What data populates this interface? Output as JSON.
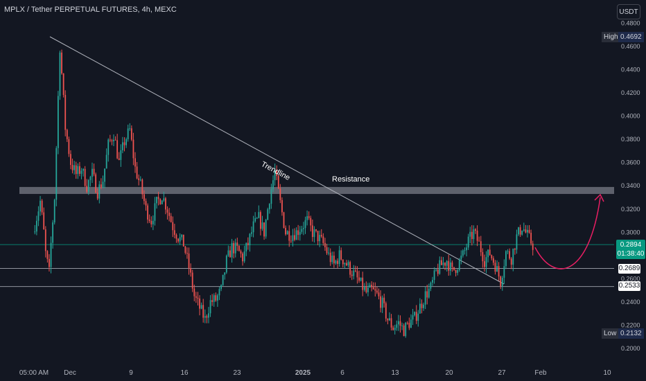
{
  "header": {
    "title": "MPLX / Tether PERPETUAL FUTURES, 4h, MEXC",
    "currency": "USDT"
  },
  "price_scale": {
    "ticks": [
      "0.4800",
      "0.4600",
      "0.4400",
      "0.4200",
      "0.4000",
      "0.3800",
      "0.3600",
      "0.3400",
      "0.3200",
      "0.3000",
      "0.2600",
      "0.2400",
      "0.2200",
      "0.2000"
    ],
    "high_label": "High",
    "high_value": "0.4692",
    "low_label": "Low",
    "low_value": "0.2132",
    "current_price": "0.2894",
    "countdown": "01:38:40",
    "level_1": "0.2689",
    "level_2": "0.2533"
  },
  "time_axis": {
    "ticks": [
      "05:00 AM",
      "Dec",
      "9",
      "16",
      "23",
      "2025",
      "6",
      "13",
      "20",
      "27",
      "Feb",
      "10"
    ]
  },
  "annotations": {
    "trendline_label": "Trendline",
    "resistance_label": "Resistance"
  },
  "colors": {
    "background": "#131722",
    "up": "#26a69a",
    "down": "#ef5350",
    "resistance_zone": "#787b86",
    "projection": "#e91e63",
    "price_line": "#089981"
  },
  "chart_data": {
    "type": "candlestick",
    "title": "MPLX / Tether PERPETUAL FUTURES, 4h, MEXC",
    "ylim": [
      0.195,
      0.482
    ],
    "resistance_zone": [
      0.333,
      0.339
    ],
    "horizontal_levels": [
      0.2894,
      0.2689,
      0.2533
    ],
    "trendline": {
      "from": [
        0.469,
        "late Nov"
      ],
      "to": [
        0.255,
        "late Jan"
      ]
    },
    "price_path": [
      [
        0.3,
        0.32
      ],
      [
        0.34,
        0.3
      ],
      [
        0.29,
        0.265
      ],
      [
        0.27,
        0.33
      ],
      [
        0.33,
        0.46
      ],
      [
        0.46,
        0.39
      ],
      [
        0.39,
        0.36
      ],
      [
        0.36,
        0.35
      ],
      [
        0.35,
        0.355
      ],
      [
        0.355,
        0.34
      ],
      [
        0.34,
        0.35
      ],
      [
        0.35,
        0.335
      ],
      [
        0.335,
        0.345
      ],
      [
        0.345,
        0.375
      ],
      [
        0.375,
        0.385
      ],
      [
        0.385,
        0.36
      ],
      [
        0.36,
        0.378
      ],
      [
        0.378,
        0.388
      ],
      [
        0.388,
        0.355
      ],
      [
        0.355,
        0.34
      ],
      [
        0.34,
        0.32
      ],
      [
        0.32,
        0.31
      ],
      [
        0.31,
        0.325
      ],
      [
        0.325,
        0.332
      ],
      [
        0.332,
        0.32
      ],
      [
        0.32,
        0.305
      ],
      [
        0.305,
        0.296
      ],
      [
        0.296,
        0.29
      ],
      [
        0.29,
        0.27
      ],
      [
        0.27,
        0.245
      ],
      [
        0.245,
        0.235
      ],
      [
        0.235,
        0.225
      ],
      [
        0.225,
        0.24
      ],
      [
        0.24,
        0.242
      ],
      [
        0.242,
        0.25
      ],
      [
        0.25,
        0.275
      ],
      [
        0.275,
        0.287
      ],
      [
        0.287,
        0.285
      ],
      [
        0.285,
        0.278
      ],
      [
        0.278,
        0.29
      ],
      [
        0.29,
        0.305
      ],
      [
        0.305,
        0.312
      ],
      [
        0.312,
        0.3
      ],
      [
        0.3,
        0.33
      ],
      [
        0.33,
        0.352
      ],
      [
        0.352,
        0.325
      ],
      [
        0.325,
        0.3
      ],
      [
        0.3,
        0.298
      ],
      [
        0.298,
        0.3
      ],
      [
        0.3,
        0.305
      ],
      [
        0.305,
        0.31
      ],
      [
        0.31,
        0.3
      ],
      [
        0.3,
        0.296
      ],
      [
        0.296,
        0.29
      ],
      [
        0.29,
        0.28
      ],
      [
        0.28,
        0.272
      ],
      [
        0.272,
        0.28
      ],
      [
        0.28,
        0.275
      ],
      [
        0.275,
        0.268
      ],
      [
        0.268,
        0.262
      ],
      [
        0.262,
        0.255
      ],
      [
        0.255,
        0.248
      ],
      [
        0.248,
        0.25
      ],
      [
        0.25,
        0.246
      ],
      [
        0.246,
        0.238
      ],
      [
        0.238,
        0.225
      ],
      [
        0.225,
        0.218
      ],
      [
        0.218,
        0.222
      ],
      [
        0.222,
        0.216
      ],
      [
        0.216,
        0.222
      ],
      [
        0.222,
        0.226
      ],
      [
        0.226,
        0.236
      ],
      [
        0.236,
        0.246
      ],
      [
        0.246,
        0.252
      ],
      [
        0.252,
        0.266
      ],
      [
        0.266,
        0.272
      ],
      [
        0.272,
        0.276
      ],
      [
        0.276,
        0.266
      ],
      [
        0.266,
        0.272
      ],
      [
        0.272,
        0.28
      ],
      [
        0.28,
        0.292
      ],
      [
        0.292,
        0.3
      ],
      [
        0.3,
        0.29
      ],
      [
        0.29,
        0.276
      ],
      [
        0.276,
        0.282
      ],
      [
        0.282,
        0.272
      ],
      [
        0.272,
        0.258
      ],
      [
        0.258,
        0.283
      ],
      [
        0.283,
        0.278
      ],
      [
        0.278,
        0.296
      ],
      [
        0.296,
        0.305
      ],
      [
        0.305,
        0.297
      ],
      [
        0.297,
        0.289
      ]
    ],
    "projection": {
      "from": 0.287,
      "dip": 0.268,
      "to": 0.33
    }
  }
}
